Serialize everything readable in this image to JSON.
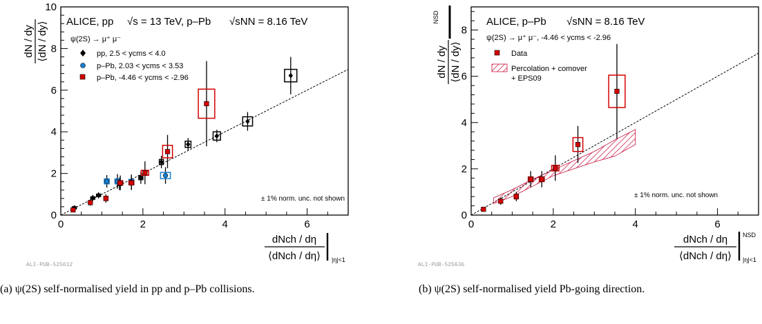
{
  "chart_data": [
    {
      "type": "scatter",
      "header_left": "ALICE, pp",
      "header_rs": "√s = 13 TeV, p–Pb",
      "header_snn": "√sNN = 8.16 TeV",
      "decay": "ψ(2S) → μ⁺ μ⁻",
      "note": "± 1% norm. unc. not shown",
      "ylabel_num": "dN / dy",
      "ylabel_den": "⟨dN / dy⟩",
      "xlabel_num": "dNch / dη",
      "xlabel_den": "⟨dNch / dη⟩",
      "xlabel_sub": "|η|<1",
      "xlim": [
        0,
        7
      ],
      "ylim": [
        0,
        10
      ],
      "xticks": [
        "0",
        "2",
        "4",
        "6"
      ],
      "yticks": [
        "0",
        "2",
        "4",
        "6",
        "8",
        "10"
      ],
      "pub_id": "ALI-PUB-525612",
      "caption": "(a) ψ(2S) self-normalised yield in pp and p–Pb collisions.",
      "series": [
        {
          "name": "pp, 2.5 < ycms < 4.0",
          "color": "#000000",
          "marker": "diamond",
          "points": [
            {
              "x": 0.33,
              "y": 0.35,
              "ey": 0.08,
              "bx": 0.05,
              "by": 0.05
            },
            {
              "x": 0.78,
              "y": 0.82,
              "ey": 0.15,
              "bx": 0.05,
              "by": 0.06
            },
            {
              "x": 0.92,
              "y": 0.95,
              "ey": 0.15,
              "bx": 0.05,
              "by": 0.06
            },
            {
              "x": 1.43,
              "y": 1.5,
              "ey": 0.3,
              "bx": 0.05,
              "by": 0.08
            },
            {
              "x": 1.95,
              "y": 1.8,
              "ey": 0.3,
              "bx": 0.05,
              "by": 0.1
            },
            {
              "x": 2.45,
              "y": 2.55,
              "ey": 0.3,
              "bx": 0.05,
              "by": 0.12
            },
            {
              "x": 3.1,
              "y": 3.4,
              "ey": 0.3,
              "bx": 0.07,
              "by": 0.15
            },
            {
              "x": 3.8,
              "y": 3.8,
              "ey": 0.3,
              "bx": 0.09,
              "by": 0.2
            },
            {
              "x": 4.55,
              "y": 4.5,
              "ey": 0.45,
              "bx": 0.12,
              "by": 0.22
            },
            {
              "x": 5.6,
              "y": 6.7,
              "ey": 0.9,
              "bx": 0.15,
              "by": 0.3
            }
          ]
        },
        {
          "name": "p–Pb, 2.03 < ycms < 3.53",
          "color": "#1a7fd0",
          "marker": "circle",
          "points": [
            {
              "x": 1.12,
              "y": 1.62,
              "ey": 0.3,
              "bx": 0.06,
              "by": 0.12
            },
            {
              "x": 1.38,
              "y": 1.62,
              "ey": 0.35,
              "bx": 0.06,
              "by": 0.12
            },
            {
              "x": 1.72,
              "y": 1.6,
              "ey": 0.35,
              "bx": 0.06,
              "by": 0.12
            },
            {
              "x": 2.55,
              "y": 1.9,
              "ey": 0.4,
              "bx": 0.12,
              "by": 0.15
            }
          ]
        },
        {
          "name": "p–Pb, -4.46 < ycms < -2.96",
          "color": "#d40000",
          "marker": "square",
          "points": [
            {
              "x": 0.3,
              "y": 0.25,
              "ey": 0.05,
              "bx": 0.03,
              "by": 0.05
            },
            {
              "x": 0.72,
              "y": 0.6,
              "ey": 0.15,
              "bx": 0.04,
              "by": 0.06
            },
            {
              "x": 1.1,
              "y": 0.8,
              "ey": 0.2,
              "bx": 0.05,
              "by": 0.1
            },
            {
              "x": 1.45,
              "y": 1.55,
              "ey": 0.35,
              "bx": 0.06,
              "by": 0.1
            },
            {
              "x": 1.72,
              "y": 1.55,
              "ey": 0.35,
              "bx": 0.06,
              "by": 0.1
            },
            {
              "x": 2.05,
              "y": 2.03,
              "ey": 0.55,
              "bx": 0.09,
              "by": 0.12
            },
            {
              "x": 2.6,
              "y": 3.05,
              "ey": 0.8,
              "bx": 0.12,
              "by": 0.3
            },
            {
              "x": 3.55,
              "y": 5.35,
              "ey": 2.05,
              "bx": 0.2,
              "by": 0.7
            }
          ]
        }
      ],
      "diagonal": [
        [
          0,
          0
        ],
        [
          7,
          7
        ]
      ]
    },
    {
      "type": "scatter",
      "header_left": "ALICE, p–Pb",
      "header_snn": "√sNN = 8.16 TeV",
      "decay": "ψ(2S) → μ⁺ μ⁻, -4.46 < ycms < -2.96",
      "note": "± 1% norm. unc. not shown",
      "ylabel_num": "dN / dy",
      "ylabel_den": "⟨dN / dy⟩",
      "ylabel_sup": "NSD",
      "xlabel_num": "dNch / dη",
      "xlabel_den": "⟨dNch / dη⟩",
      "xlabel_sup": "NSD",
      "xlabel_sub": "|η|<1",
      "xlim": [
        0,
        7
      ],
      "ylim": [
        0,
        9
      ],
      "xticks": [
        "0",
        "2",
        "4",
        "6"
      ],
      "yticks": [
        "0",
        "2",
        "4",
        "6",
        "8"
      ],
      "pub_id": "ALI-PUB-525636",
      "caption": "(b) ψ(2S) self-normalised yield Pb-going direction.",
      "series": [
        {
          "name": "Data",
          "color": "#d40000",
          "marker": "square",
          "points": [
            {
              "x": 0.3,
              "y": 0.25,
              "ey": 0.05,
              "bx": 0.03,
              "by": 0.05
            },
            {
              "x": 0.72,
              "y": 0.6,
              "ey": 0.15,
              "bx": 0.04,
              "by": 0.06
            },
            {
              "x": 1.1,
              "y": 0.8,
              "ey": 0.2,
              "bx": 0.05,
              "by": 0.1
            },
            {
              "x": 1.45,
              "y": 1.55,
              "ey": 0.35,
              "bx": 0.06,
              "by": 0.1
            },
            {
              "x": 1.72,
              "y": 1.55,
              "ey": 0.35,
              "bx": 0.06,
              "by": 0.1
            },
            {
              "x": 2.05,
              "y": 2.03,
              "ey": 0.55,
              "bx": 0.09,
              "by": 0.12
            },
            {
              "x": 2.6,
              "y": 3.05,
              "ey": 0.8,
              "bx": 0.12,
              "by": 0.3
            },
            {
              "x": 3.55,
              "y": 5.35,
              "ey": 2.05,
              "bx": 0.2,
              "by": 0.7
            }
          ]
        }
      ],
      "band": {
        "name": "Percolation + comover + EPS09",
        "color": "#c8103a",
        "x": [
          0.55,
          1.0,
          1.5,
          2.0,
          2.5,
          3.0,
          3.5,
          4.0
        ],
        "low": [
          0.5,
          0.8,
          1.25,
          1.7,
          2.0,
          2.3,
          2.55,
          3.05
        ],
        "high": [
          0.75,
          1.1,
          1.55,
          1.95,
          2.35,
          2.75,
          3.25,
          3.7
        ]
      },
      "diagonal": [
        [
          0,
          0
        ],
        [
          7,
          7
        ]
      ]
    }
  ]
}
